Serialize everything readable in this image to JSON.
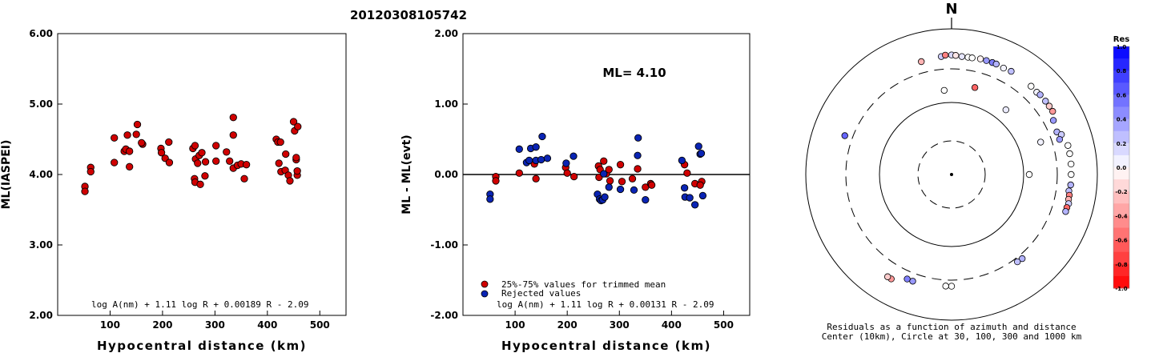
{
  "figure_title": "20120308105742",
  "chart_data": [
    {
      "type": "scatter",
      "title": "",
      "xlabel": "Hypocentral distance (km)",
      "ylabel": "ML(IASPEI)",
      "xlim": [
        0,
        550
      ],
      "ylim": [
        2.0,
        6.0
      ],
      "xticks": [
        "100",
        "200",
        "300",
        "400",
        "500"
      ],
      "yticks": [
        "2.00",
        "3.00",
        "4.00",
        "5.00",
        "6.00"
      ],
      "formula": "log A(nm) + 1.11 log R + 0.00189 R - 2.09",
      "series": [
        {
          "color": "#d00000",
          "points": [
            [
              52,
              3.83
            ],
            [
              52,
              3.76
            ],
            [
              63,
              4.1
            ],
            [
              63,
              4.04
            ],
            [
              108,
              4.52
            ],
            [
              108,
              4.17
            ],
            [
              127,
              4.33
            ],
            [
              130,
              4.36
            ],
            [
              133,
              4.56
            ],
            [
              137,
              4.11
            ],
            [
              137,
              4.33
            ],
            [
              150,
              4.57
            ],
            [
              152,
              4.71
            ],
            [
              162,
              4.43
            ],
            [
              160,
              4.45
            ],
            [
              197,
              4.37
            ],
            [
              198,
              4.31
            ],
            [
              205,
              4.23
            ],
            [
              212,
              4.46
            ],
            [
              213,
              4.17
            ],
            [
              258,
              4.37
            ],
            [
              262,
              4.41
            ],
            [
              261,
              3.94
            ],
            [
              262,
              3.89
            ],
            [
              263,
              4.22
            ],
            [
              267,
              4.16
            ],
            [
              270,
              4.27
            ],
            [
              272,
              3.86
            ],
            [
              275,
              4.31
            ],
            [
              281,
              3.98
            ],
            [
              282,
              4.18
            ],
            [
              302,
              4.41
            ],
            [
              302,
              4.19
            ],
            [
              322,
              4.32
            ],
            [
              328,
              4.19
            ],
            [
              335,
              4.81
            ],
            [
              335,
              4.56
            ],
            [
              335,
              4.09
            ],
            [
              343,
              4.13
            ],
            [
              350,
              4.15
            ],
            [
              356,
              3.94
            ],
            [
              360,
              4.14
            ],
            [
              417,
              4.5
            ],
            [
              420,
              4.46
            ],
            [
              422,
              4.16
            ],
            [
              425,
              4.46
            ],
            [
              426,
              4.04
            ],
            [
              434,
              4.06
            ],
            [
              435,
              4.29
            ],
            [
              440,
              3.99
            ],
            [
              443,
              3.91
            ],
            [
              450,
              4.75
            ],
            [
              452,
              4.62
            ],
            [
              455,
              4.21
            ],
            [
              455,
              4.24
            ],
            [
              457,
              3.99
            ],
            [
              457,
              4.05
            ],
            [
              458,
              4.68
            ]
          ]
        }
      ]
    },
    {
      "type": "scatter",
      "title": "ML= 4.10",
      "xlabel": "Hypocentral distance (km)",
      "ylabel": "ML - ML(evt)",
      "xlim": [
        0,
        550
      ],
      "ylim": [
        -2.0,
        2.0
      ],
      "xticks": [
        "100",
        "200",
        "300",
        "400",
        "500"
      ],
      "yticks": [
        "-2.00",
        "-1.00",
        "0.00",
        "1.00",
        "2.00"
      ],
      "formula": "log A(nm) + 1.11 log R + 0.00131 R - 2.09",
      "series": [
        {
          "name": "25%-75% values for trimmed mean",
          "color": "#d00000",
          "points": [
            [
              63,
              -0.03
            ],
            [
              63,
              -0.09
            ],
            [
              108,
              0.02
            ],
            [
              137,
              0.15
            ],
            [
              140,
              -0.06
            ],
            [
              197,
              0.1
            ],
            [
              200,
              0.02
            ],
            [
              213,
              -0.03
            ],
            [
              260,
              0.12
            ],
            [
              261,
              -0.04
            ],
            [
              263,
              0.07
            ],
            [
              270,
              0.19
            ],
            [
              275,
              0.01
            ],
            [
              280,
              0.07
            ],
            [
              282,
              -0.09
            ],
            [
              302,
              0.14
            ],
            [
              305,
              -0.1
            ],
            [
              325,
              -0.06
            ],
            [
              335,
              0.08
            ],
            [
              350,
              -0.18
            ],
            [
              360,
              -0.13
            ],
            [
              362,
              -0.15
            ],
            [
              425,
              0.14
            ],
            [
              430,
              0.02
            ],
            [
              445,
              -0.13
            ],
            [
              458,
              -0.1
            ],
            [
              455,
              -0.15
            ]
          ]
        },
        {
          "name": "Rejected values",
          "color": "#0a24b4",
          "points": [
            [
              52,
              -0.28
            ],
            [
              52,
              -0.35
            ],
            [
              108,
              0.36
            ],
            [
              122,
              0.17
            ],
            [
              127,
              0.2
            ],
            [
              130,
              0.37
            ],
            [
              140,
              0.39
            ],
            [
              140,
              0.2
            ],
            [
              150,
              0.21
            ],
            [
              152,
              0.54
            ],
            [
              162,
              0.23
            ],
            [
              198,
              0.16
            ],
            [
              212,
              0.26
            ],
            [
              258,
              -0.28
            ],
            [
              262,
              -0.35
            ],
            [
              265,
              -0.37
            ],
            [
              268,
              -0.36
            ],
            [
              270,
              0.01
            ],
            [
              272,
              -0.32
            ],
            [
              280,
              -0.18
            ],
            [
              302,
              -0.21
            ],
            [
              328,
              -0.22
            ],
            [
              335,
              0.27
            ],
            [
              336,
              0.52
            ],
            [
              350,
              -0.36
            ],
            [
              420,
              0.2
            ],
            [
              425,
              -0.19
            ],
            [
              426,
              -0.32
            ],
            [
              435,
              -0.33
            ],
            [
              445,
              -0.43
            ],
            [
              452,
              0.4
            ],
            [
              455,
              0.29
            ],
            [
              457,
              0.3
            ],
            [
              460,
              -0.3
            ]
          ]
        }
      ]
    }
  ],
  "polar_plot": {
    "north_label": "N",
    "caption_line1": "Residuals as a function of azimuth and distance",
    "caption_line2": "Center (10km), Circle at 30, 100, 300 and 1000 km",
    "radius_scale_km": [
      10,
      30,
      100,
      300,
      1000
    ],
    "colorbar_title": "Res",
    "colorbar_ticks": [
      "1.0",
      "0.8",
      "0.6",
      "0.4",
      "0.2",
      "0.0",
      "-0.2",
      "-0.4",
      "-0.6",
      "-0.8",
      "-1.0"
    ],
    "stations": [
      {
        "az": 355,
        "dist": 150,
        "res": 0.0
      },
      {
        "az": 40,
        "dist": 150,
        "res": 0.08
      },
      {
        "az": 70,
        "dist": 210,
        "res": 0.05
      },
      {
        "az": 290,
        "dist": 380,
        "res": 0.6
      },
      {
        "az": 345,
        "dist": 420,
        "res": -0.3
      },
      {
        "az": 355,
        "dist": 440,
        "res": 0.2
      },
      {
        "az": 357,
        "dist": 455,
        "res": -0.5
      },
      {
        "az": 0,
        "dist": 455,
        "res": 0.15
      },
      {
        "az": 2,
        "dist": 450,
        "res": -0.1
      },
      {
        "az": 5,
        "dist": 440,
        "res": 0.1
      },
      {
        "az": 8,
        "dist": 440,
        "res": 0.0
      },
      {
        "az": 10,
        "dist": 440,
        "res": 0.0
      },
      {
        "az": 14,
        "dist": 450,
        "res": -0.05
      },
      {
        "az": 17,
        "dist": 450,
        "res": 0.4
      },
      {
        "az": 20,
        "dist": 450,
        "res": 0.5
      },
      {
        "az": 22,
        "dist": 450,
        "res": 0.3
      },
      {
        "az": 26,
        "dist": 440,
        "res": 0.05
      },
      {
        "az": 30,
        "dist": 450,
        "res": 0.25
      },
      {
        "az": 42,
        "dist": 445,
        "res": 0.0
      },
      {
        "az": 46,
        "dist": 440,
        "res": 0.05
      },
      {
        "az": 48,
        "dist": 450,
        "res": 0.3
      },
      {
        "az": 52,
        "dist": 450,
        "res": 0.25
      },
      {
        "az": 55,
        "dist": 450,
        "res": -0.2
      },
      {
        "az": 58,
        "dist": 450,
        "res": -0.4
      },
      {
        "az": 62,
        "dist": 400,
        "res": 0.4
      },
      {
        "az": 68,
        "dist": 380,
        "res": 0.3
      },
      {
        "az": 70,
        "dist": 420,
        "res": 0.2
      },
      {
        "az": 72,
        "dist": 380,
        "res": 0.4
      },
      {
        "az": 76,
        "dist": 460,
        "res": 0.0
      },
      {
        "az": 80,
        "dist": 460,
        "res": 0.0
      },
      {
        "az": 85,
        "dist": 460,
        "res": 0.0
      },
      {
        "az": 90,
        "dist": 455,
        "res": 0.0
      },
      {
        "az": 95,
        "dist": 455,
        "res": 0.3
      },
      {
        "az": 98,
        "dist": 440,
        "res": 0.25
      },
      {
        "az": 100,
        "dist": 455,
        "res": -0.5
      },
      {
        "az": 102,
        "dist": 455,
        "res": -0.3
      },
      {
        "az": 104,
        "dist": 470,
        "res": 0.2
      },
      {
        "az": 106,
        "dist": 460,
        "res": -0.6
      },
      {
        "az": 108,
        "dist": 460,
        "res": 0.3
      },
      {
        "az": 140,
        "dist": 340,
        "res": 0.3
      },
      {
        "az": 143,
        "dist": 335,
        "res": 0.25
      },
      {
        "az": 180,
        "dist": 360,
        "res": 0.0
      },
      {
        "az": 183,
        "dist": 360,
        "res": 0.0
      },
      {
        "az": 200,
        "dist": 380,
        "res": 0.4
      },
      {
        "az": 203,
        "dist": 380,
        "res": 0.5
      },
      {
        "az": 210,
        "dist": 470,
        "res": -0.4
      },
      {
        "az": 212,
        "dist": 470,
        "res": -0.2
      },
      {
        "az": 15,
        "dist": 180,
        "res": -0.6
      },
      {
        "az": 90,
        "dist": 120,
        "res": 0.0
      }
    ]
  }
}
